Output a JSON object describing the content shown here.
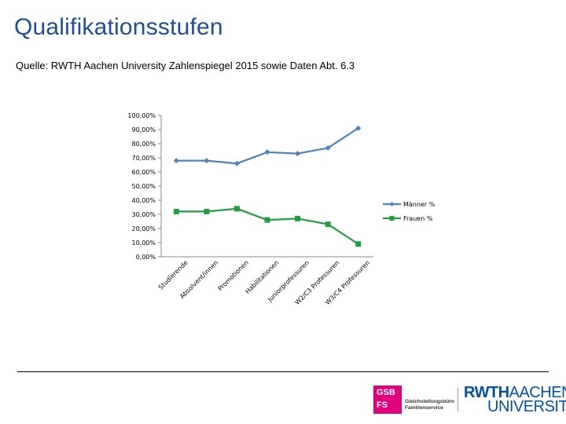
{
  "header": {
    "title": "Qualifikationsstufen",
    "source": "Quelle: RWTH Aachen University Zahlenspiegel 2015 sowie Daten Abt. 6.3"
  },
  "colors": {
    "title": "#1f4e96",
    "maenner": "#4f81bd",
    "frauen": "#1e9e3e",
    "gsb": "#e4007c",
    "rwth": "#00549f"
  },
  "chart_data": {
    "type": "line",
    "title": "",
    "xlabel": "",
    "ylabel": "",
    "ylim": [
      0,
      100
    ],
    "yticks": [
      "100,00%",
      "90,00%",
      "80,00%",
      "70,00%",
      "60,00%",
      "50,00%",
      "40,00%",
      "30,00%",
      "20,00%",
      "10,00%",
      "0,00%"
    ],
    "categories": [
      "Studierende",
      "Absolvent/innen",
      "Promotionen",
      "Habilitationen",
      "Juniorprofessuren",
      "W2/C3 Professuren",
      "W3/C4 Professuren"
    ],
    "series": [
      {
        "name": "Männer %",
        "values": [
          68,
          68,
          66,
          74,
          73,
          77,
          91
        ]
      },
      {
        "name": "Frauen %",
        "values": [
          32,
          32,
          34,
          26,
          27,
          23,
          9
        ]
      }
    ],
    "legend": "right"
  },
  "logos": {
    "gsb_line1": "GSB",
    "gsb_line2": "FS",
    "gsb_text1": "Gleichstellungsbüro",
    "gsb_text2": "Familienservice",
    "rwth_bold": "RWTH",
    "rwth_light": "AACHEN",
    "rwth_line2": "UNIVERSITY"
  }
}
